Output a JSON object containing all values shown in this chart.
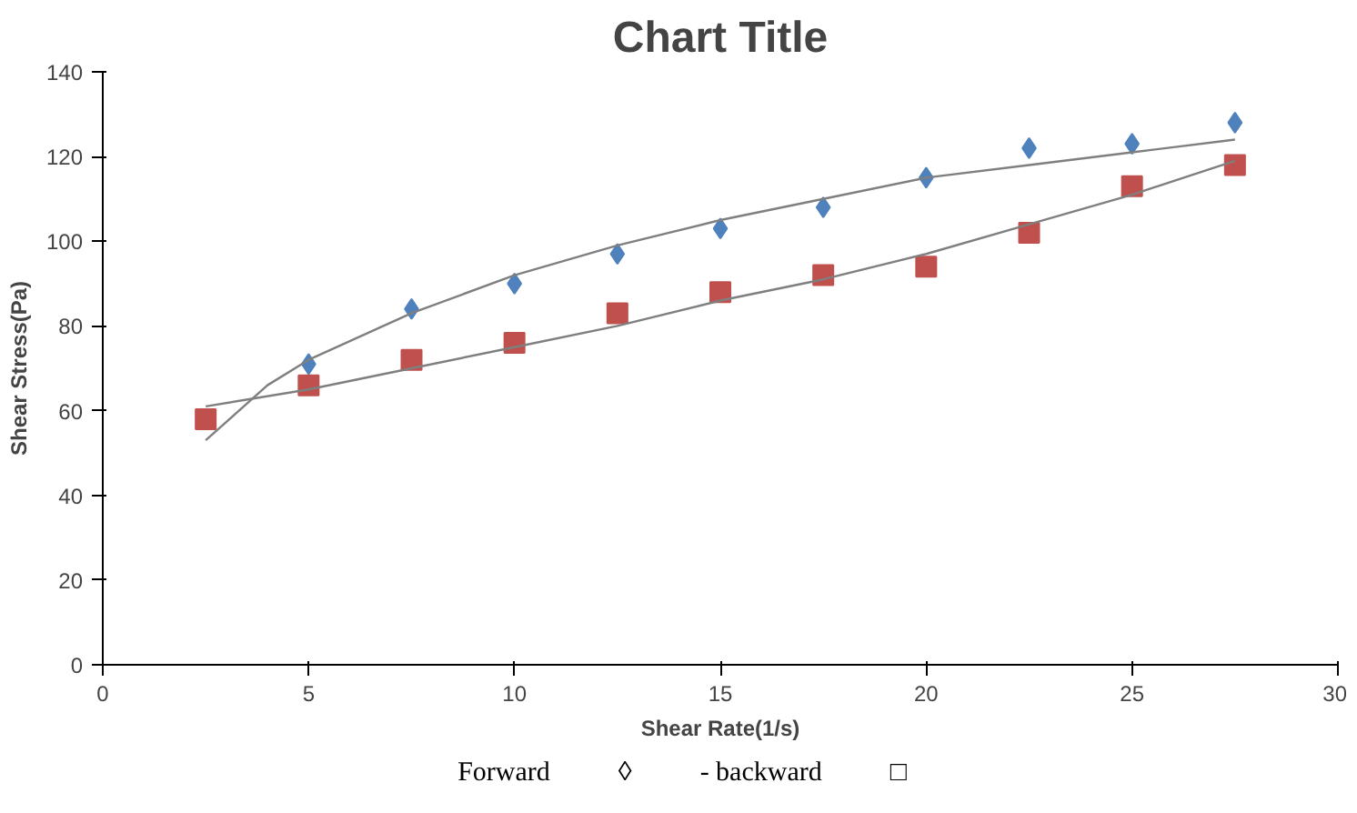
{
  "chart_data": {
    "type": "scatter",
    "title": "Chart Title",
    "xlabel": "Shear Rate(1/s)",
    "ylabel": "Shear Stress(Pa)",
    "xlim": [
      0,
      30
    ],
    "ylim": [
      0,
      140
    ],
    "xticks": [
      0,
      5,
      10,
      15,
      20,
      25,
      30
    ],
    "yticks": [
      0,
      20,
      40,
      60,
      80,
      100,
      120,
      140
    ],
    "grid": false,
    "series": [
      {
        "color": "#4f81bd",
        "marker": "diamond",
        "x": [
          5,
          7.5,
          10,
          12.5,
          15,
          17.5,
          20,
          22.5,
          25,
          27.5
        ],
        "values": [
          71,
          84,
          90,
          97,
          103,
          108,
          115,
          122,
          123,
          128
        ]
      },
      {
        "color": "#c0504d",
        "marker": "square",
        "x": [
          2.5,
          5,
          7.5,
          10,
          12.5,
          15,
          17.5,
          20,
          22.5,
          25,
          27.5
        ],
        "values": [
          58,
          66,
          72,
          76,
          83,
          88,
          92,
          94,
          102,
          113,
          118
        ]
      },
      {
        "type": "line",
        "color": "#7f7f7f",
        "marker": "none",
        "x": [
          2.5,
          4,
          5,
          7.5,
          10,
          12.5,
          15,
          17.5,
          20,
          22.5,
          25,
          27.5
        ],
        "values": [
          53,
          66,
          72,
          83,
          92,
          99,
          105,
          110,
          115,
          118,
          121,
          124
        ]
      },
      {
        "type": "line",
        "color": "#7f7f7f",
        "marker": "none",
        "x": [
          2.5,
          5,
          7.5,
          10,
          12.5,
          15,
          17.5,
          20,
          22.5,
          25,
          27.5
        ],
        "values": [
          61,
          65,
          70,
          75,
          80,
          86,
          91,
          97,
          104,
          111,
          119
        ]
      }
    ],
    "annotations": [
      "Forward          ◊          - backward          □"
    ]
  }
}
